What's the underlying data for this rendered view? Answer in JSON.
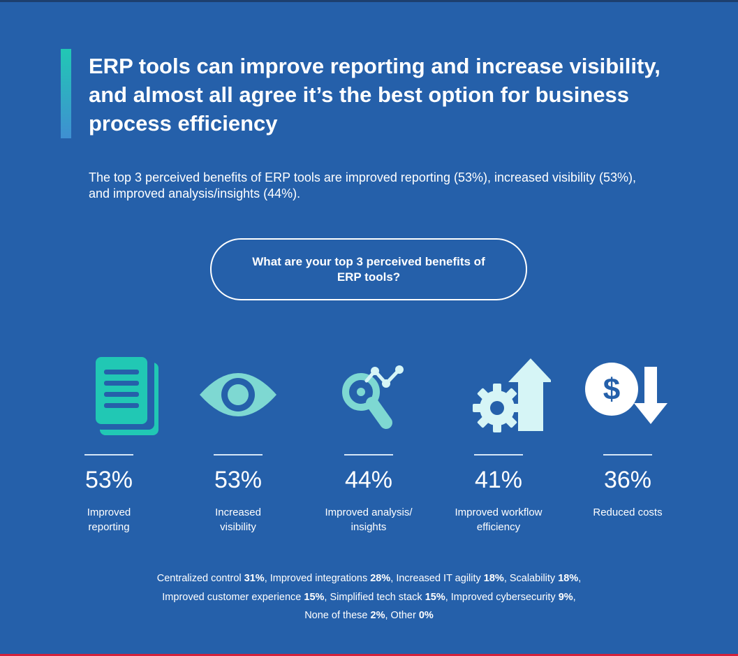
{
  "header": {
    "title": "ERP tools can improve reporting and increase visibility, and almost all agree it’s the best option for business process efficiency",
    "subtitle": "The top 3 perceived benefits of ERP tools are improved reporting (53%), increased visibility (53%), and improved analysis/insights (44%)."
  },
  "question": "What are your top 3 perceived benefits of ERP tools?",
  "colors": {
    "background": "#2560aa",
    "accent_teal": "#21c8b4",
    "icon_light": "#d6f5f6",
    "icon_mid": "#7ed8d2"
  },
  "chart_data": {
    "type": "table",
    "title": "What are your top 3 perceived benefits of ERP tools?",
    "unit": "%",
    "featured": [
      {
        "value": 53,
        "display": "53%",
        "label_lines": [
          "Improved",
          "reporting"
        ],
        "icon": "document-icon"
      },
      {
        "value": 53,
        "display": "53%",
        "label_lines": [
          "Increased",
          "visibility"
        ],
        "icon": "eye-icon"
      },
      {
        "value": 44,
        "display": "44%",
        "label_lines": [
          "Improved analysis/",
          "insights"
        ],
        "icon": "analytics-magnifier-icon"
      },
      {
        "value": 41,
        "display": "41%",
        "label_lines": [
          "Improved workflow",
          "efficiency"
        ],
        "icon": "gear-arrow-up-icon"
      },
      {
        "value": 36,
        "display": "36%",
        "label_lines": [
          "Reduced costs"
        ],
        "icon": "dollar-arrow-down-icon"
      }
    ],
    "others": [
      {
        "label": "Centralized control",
        "value": 31,
        "display": "31%"
      },
      {
        "label": "Improved integrations",
        "value": 28,
        "display": "28%"
      },
      {
        "label": "Increased IT agility",
        "value": 18,
        "display": "18%"
      },
      {
        "label": "Scalability",
        "value": 18,
        "display": "18%"
      },
      {
        "label": "Improved customer experience",
        "value": 15,
        "display": "15%"
      },
      {
        "label": "Simplified tech stack",
        "value": 15,
        "display": "15%"
      },
      {
        "label": "Improved cybersecurity",
        "value": 9,
        "display": "9%"
      },
      {
        "label": "None of these",
        "value": 2,
        "display": "2%"
      },
      {
        "label": "Other",
        "value": 0,
        "display": "0%"
      }
    ]
  }
}
